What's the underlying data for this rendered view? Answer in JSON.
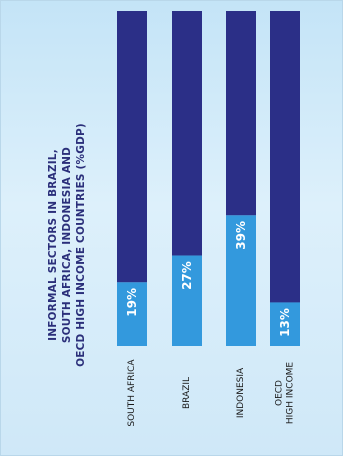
{
  "chart_data": {
    "type": "bar",
    "orientation": "stacked-100",
    "title": "INFORMAL SECTORS IN BRAZIL,\nSOUTH AFRICA, INDONESIA AND\nOECD HIGH INCOME COUNTRIES (%GDP)",
    "categories": [
      "SOUTH AFRICA",
      "BRAZIL",
      "INDONESIA",
      "OECD\nHIGH INCOME"
    ],
    "values": [
      19,
      27,
      39,
      13
    ],
    "value_labels": [
      "19%",
      "27%",
      "39%",
      "13%"
    ],
    "ylim": [
      0,
      100
    ],
    "grid": false,
    "colors": {
      "value": "#3399dd",
      "remainder": "#2b2f87",
      "label_text": "#ffffff",
      "category_text": "#1a1a1a",
      "title_text": "#2b2f7a",
      "background": "#d2ebf8"
    }
  }
}
